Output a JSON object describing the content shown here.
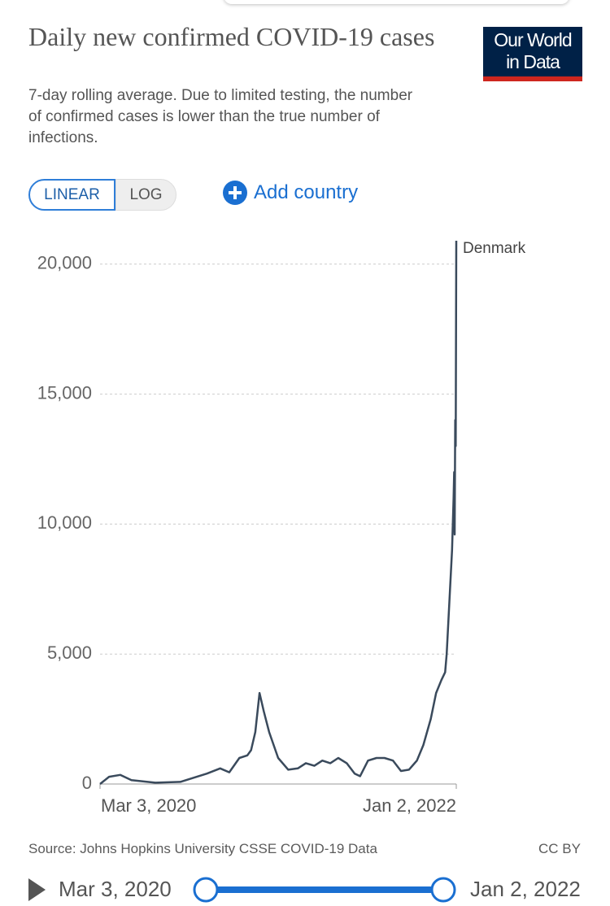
{
  "header": {
    "title": "Daily new confirmed COVID-19 cases",
    "subtitle": "7-day rolling average. Due to limited testing, the number of confirmed cases is lower than the true number of infections.",
    "logo": [
      "Our World",
      "in Data"
    ]
  },
  "controls": {
    "linear": "LINEAR",
    "log": "LOG",
    "add": "Add country"
  },
  "chart_data": {
    "type": "line",
    "x": [
      "2020-03-03",
      "2020-03-20",
      "2020-04-10",
      "2020-05-01",
      "2020-06-15",
      "2020-08-01",
      "2020-09-20",
      "2020-10-15",
      "2020-11-01",
      "2020-11-20",
      "2020-12-05",
      "2020-12-12",
      "2020-12-20",
      "2020-12-28",
      "2021-01-05",
      "2021-01-15",
      "2021-02-01",
      "2021-02-20",
      "2021-03-10",
      "2021-03-25",
      "2021-04-10",
      "2021-04-25",
      "2021-05-10",
      "2021-05-25",
      "2021-06-10",
      "2021-06-25",
      "2021-07-05",
      "2021-07-20",
      "2021-08-05",
      "2021-08-20",
      "2021-09-05",
      "2021-09-20",
      "2021-10-05",
      "2021-10-20",
      "2021-11-01",
      "2021-11-15",
      "2021-11-25",
      "2021-12-05",
      "2021-12-12",
      "2021-12-15",
      "2021-12-20",
      "2021-12-25",
      "2021-12-28",
      "2021-12-29",
      "2021-12-30",
      "2021-12-31",
      "2022-01-01",
      "2022-01-02"
    ],
    "series": [
      {
        "name": "Denmark",
        "color": "#3a4a5c",
        "values": [
          0,
          280,
          350,
          150,
          50,
          80,
          400,
          600,
          450,
          1000,
          1100,
          1300,
          2000,
          3500,
          2800,
          2000,
          1000,
          550,
          600,
          800,
          700,
          900,
          800,
          1000,
          800,
          400,
          300,
          900,
          1000,
          1000,
          900,
          500,
          550,
          900,
          1500,
          2500,
          3500,
          4000,
          4300,
          5000,
          7000,
          9000,
          11000,
          12000,
          9600,
          14000,
          13000,
          20900
        ]
      }
    ],
    "xlim": [
      "2020-03-03",
      "2022-01-02"
    ],
    "xticks": [
      {
        "value": "2020-03-03",
        "label": "Mar 3, 2020"
      },
      {
        "value": "2022-01-02",
        "label": "Jan 2, 2022"
      }
    ],
    "ylim": [
      0,
      20900
    ],
    "yticks": [
      0,
      {
        "value": 5000,
        "label": "5,000"
      },
      {
        "value": 10000,
        "label": "10,000"
      },
      {
        "value": 15000,
        "label": "15,000"
      },
      {
        "value": 20000,
        "label": "20,000"
      }
    ],
    "grid": true
  },
  "footer": {
    "source": "Source: Johns Hopkins University CSSE COVID-19 Data",
    "license": "CC BY"
  },
  "timeline": {
    "start": "Mar 3, 2020",
    "end": "Jan 2, 2022"
  }
}
